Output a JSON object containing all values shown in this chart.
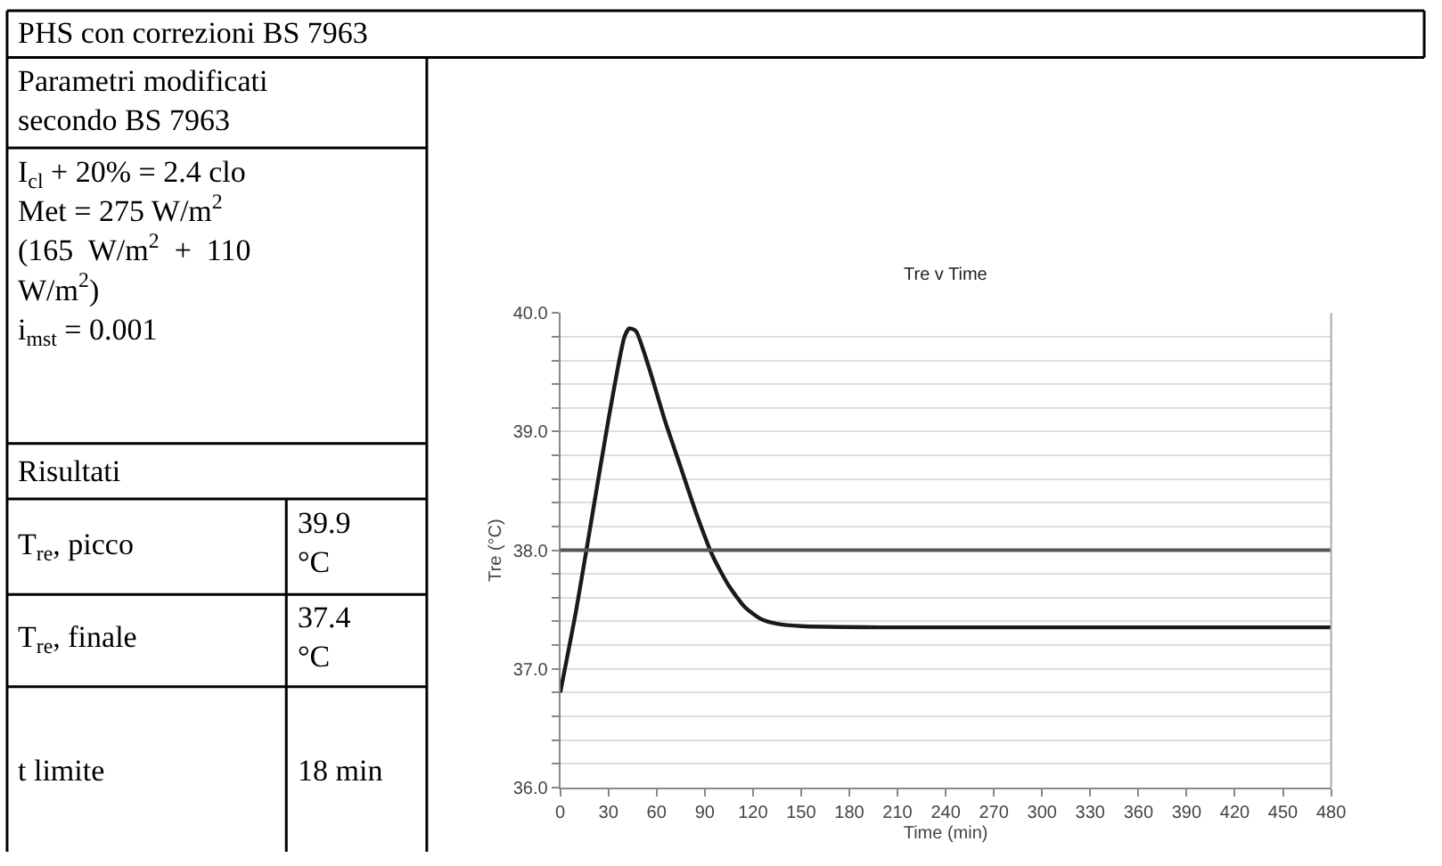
{
  "chart_data": [
    {
      "type": "other",
      "title": "PHS con correzioni BS 7963",
      "annotations": [
        "Parametri modificati\nsecondo BS 7963",
        "I$_{cl}$ + 20% = 2.4 clo\nMet = 275 W/m$^{2}$\n(165  W/m$^{2}$  +  110\nW/m$^{2}$)\ni$_{mst}$ = 0.001",
        "Risultati",
        "T$_{re}$, picco",
        "39.9\n°C",
        "T$_{re}$, finale",
        "37.4\n°C",
        "t limite",
        "18 min"
      ]
    },
    {
      "type": "line",
      "title": "Tre v Time",
      "xlabel": "Time (min)",
      "ylabel": "Tre (°C)",
      "x": [
        0,
        10,
        20,
        30,
        40,
        43,
        47,
        55,
        65,
        75,
        85,
        95,
        105,
        115,
        125,
        135,
        150,
        200,
        480
      ],
      "series": [
        {
          "color": "#1a1a1a",
          "values": [
            36.8,
            37.5,
            38.3,
            39.1,
            39.8,
            39.87,
            39.85,
            39.55,
            39.1,
            38.7,
            38.3,
            37.95,
            37.7,
            37.52,
            37.42,
            37.38,
            37.36,
            37.35,
            37.35
          ]
        }
      ],
      "ref_lines": [
        {
          "axis": "y",
          "value": 38.0,
          "color": "#555555"
        }
      ],
      "xlim": [
        0,
        480
      ],
      "xticks": [
        0,
        30,
        60,
        90,
        120,
        150,
        180,
        210,
        240,
        270,
        300,
        330,
        360,
        390,
        420,
        450,
        480
      ],
      "ylim": [
        36,
        40
      ],
      "yticks": [
        {
          "value": 36,
          "label": "36.0"
        },
        {
          "value": 36.2,
          "label": null
        },
        {
          "value": 36.4,
          "label": null
        },
        {
          "value": 36.6,
          "label": null
        },
        {
          "value": 36.8,
          "label": null
        },
        {
          "value": 37,
          "label": "37.0"
        },
        {
          "value": 37.2,
          "label": null
        },
        {
          "value": 37.4,
          "label": null
        },
        {
          "value": 37.6,
          "label": null
        },
        {
          "value": 37.8,
          "label": null
        },
        {
          "value": 38,
          "label": "38.0"
        },
        {
          "value": 38.2,
          "label": null
        },
        {
          "value": 38.4,
          "label": null
        },
        {
          "value": 38.6,
          "label": null
        },
        {
          "value": 38.8,
          "label": null
        },
        {
          "value": 39,
          "label": "39.0"
        },
        {
          "value": 39.2,
          "label": null
        },
        {
          "value": 39.4,
          "label": null
        },
        {
          "value": 39.6,
          "label": null
        },
        {
          "value": 39.8,
          "label": null
        },
        {
          "value": 40,
          "label": "40.0"
        }
      ],
      "grid": "y",
      "marker": "none",
      "line_style": "solid"
    }
  ]
}
